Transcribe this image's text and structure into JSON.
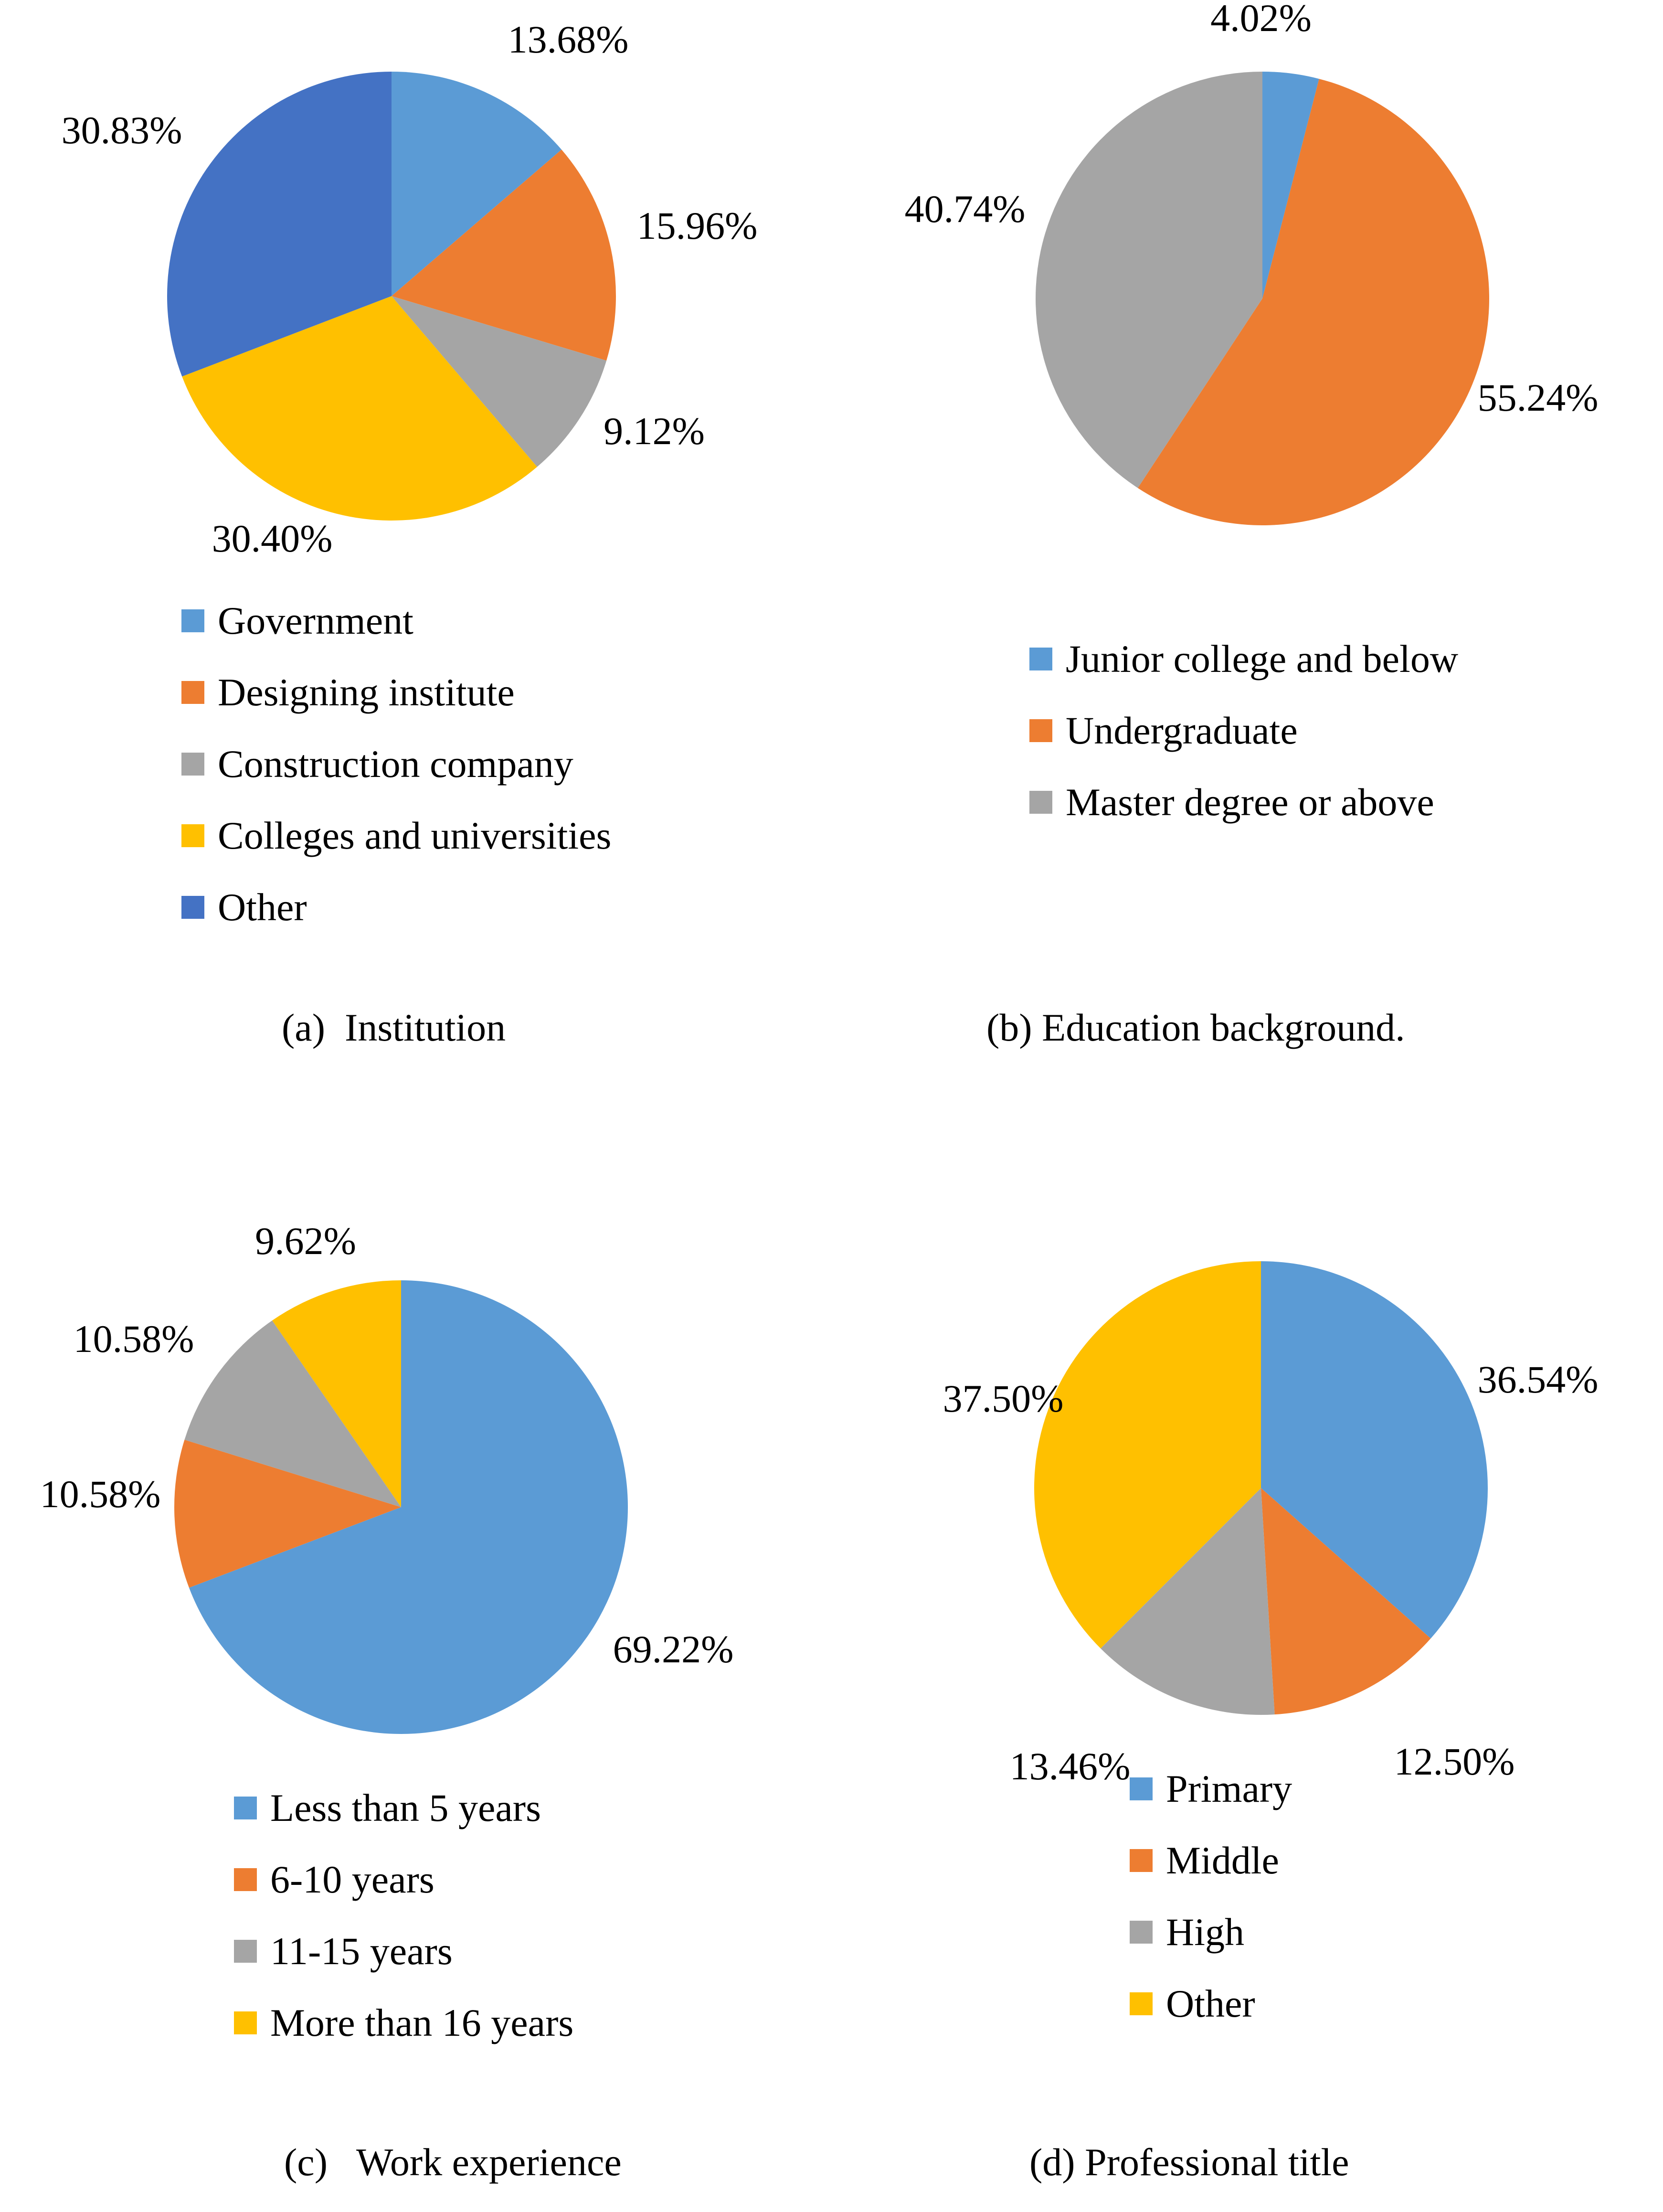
{
  "chart_data": [
    {
      "type": "pie",
      "panel": "a",
      "caption": "(a)  Institution",
      "categories": [
        "Government",
        "Designing institute",
        "Construction company",
        "Colleges and universities",
        "Other"
      ],
      "values": [
        13.68,
        15.96,
        9.12,
        30.4,
        30.83
      ],
      "labels": [
        "13.68%",
        "15.96%",
        "9.12%",
        "30.40%",
        "30.83%"
      ],
      "colors": [
        "#5B9BD5",
        "#ED7D31",
        "#A5A5A5",
        "#FFC000",
        "#4472C4"
      ],
      "legend_position": "bottom"
    },
    {
      "type": "pie",
      "panel": "b",
      "caption": "(b) Education background.",
      "categories": [
        "Junior college and below",
        "Undergraduate",
        "Master degree or above"
      ],
      "values": [
        4.02,
        55.24,
        40.74
      ],
      "labels": [
        "4.02%",
        "55.24%",
        "40.74%"
      ],
      "colors": [
        "#5B9BD5",
        "#ED7D31",
        "#A5A5A5"
      ],
      "legend_position": "bottom"
    },
    {
      "type": "pie",
      "panel": "c",
      "caption": "(c)   Work experience",
      "categories": [
        "Less than 5 years",
        "6-10 years",
        "11-15 years",
        "More than 16 years"
      ],
      "values": [
        69.22,
        10.58,
        10.58,
        9.62
      ],
      "labels": [
        "69.22%",
        "10.58%",
        "10.58%",
        "9.62%"
      ],
      "colors": [
        "#5B9BD5",
        "#ED7D31",
        "#A5A5A5",
        "#FFC000"
      ],
      "legend_position": "bottom"
    },
    {
      "type": "pie",
      "panel": "d",
      "caption": "(d) Professional title",
      "categories": [
        "Primary",
        "Middle",
        "High",
        "Other"
      ],
      "values": [
        36.54,
        12.5,
        13.46,
        37.5
      ],
      "labels": [
        "36.54%",
        "12.50%",
        "13.46%",
        "37.50%"
      ],
      "colors": [
        "#5B9BD5",
        "#ED7D31",
        "#A5A5A5",
        "#FFC000"
      ],
      "legend_position": "bottom"
    }
  ]
}
